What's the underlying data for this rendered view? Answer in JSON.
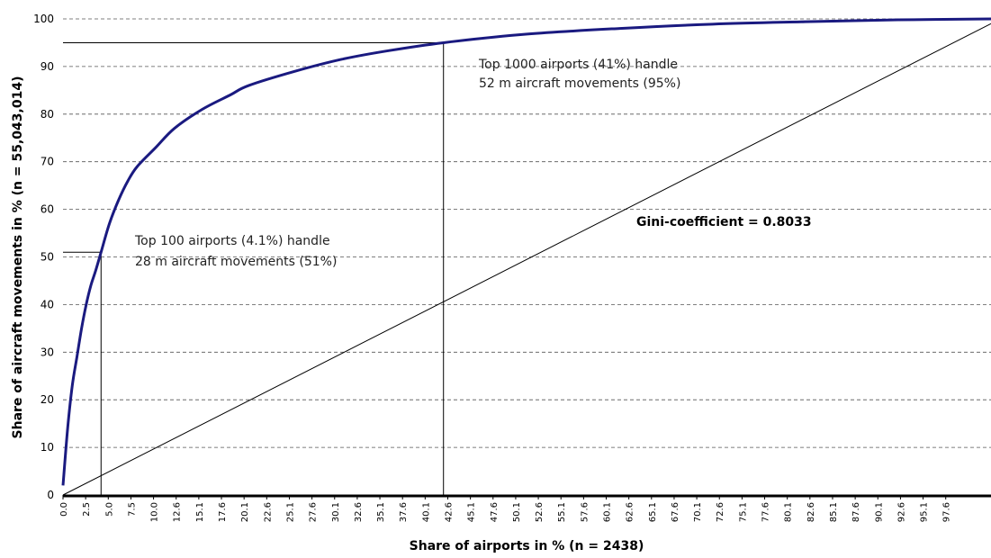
{
  "chart_data": {
    "type": "line",
    "title": "",
    "xlabel": "Share of airports in % (n = 2438)",
    "ylabel": "Share of aircraft movements in % (n = 55,043,014)",
    "xlim": [
      0,
      100
    ],
    "ylim": [
      0,
      100
    ],
    "y_ticks": [
      0,
      10,
      20,
      30,
      40,
      50,
      60,
      70,
      80,
      90,
      100
    ],
    "x_tick_labels": [
      "0.0",
      "2.5",
      "5.0",
      "7.5",
      "10.0",
      "12.6",
      "15.1",
      "17.6",
      "20.1",
      "22.6",
      "25.1",
      "27.6",
      "30.1",
      "32.6",
      "35.1",
      "37.6",
      "40.1",
      "42.6",
      "45.1",
      "47.6",
      "50.1",
      "52.6",
      "55.1",
      "57.6",
      "60.1",
      "62.6",
      "65.1",
      "67.6",
      "70.1",
      "72.6",
      "75.1",
      "77.6",
      "80.1",
      "82.6",
      "85.1",
      "87.6",
      "90.1",
      "92.6",
      "95.1",
      "97.6"
    ],
    "grid": "horizontal-dashed",
    "series": [
      {
        "color": "#1a1a80",
        "x": [
          0,
          0.5,
          1,
          1.5,
          2,
          2.5,
          3,
          3.5,
          4.1,
          5,
          6,
          7,
          8,
          10,
          12,
          15,
          18,
          20,
          25,
          30,
          35,
          41,
          50,
          60,
          70,
          80,
          90,
          100
        ],
        "y": [
          2,
          14,
          23,
          29,
          35,
          40,
          44,
          47,
          51,
          57,
          62,
          66,
          69,
          73,
          77,
          81,
          84,
          86,
          89,
          91.5,
          93.3,
          95,
          96.8,
          98,
          98.9,
          99.4,
          99.8,
          100
        ]
      },
      {
        "color": "#000000",
        "x": [
          0,
          100
        ],
        "y": [
          0,
          99
        ]
      }
    ],
    "reference_lines": [
      {
        "x": 4.1,
        "y": 51
      },
      {
        "x": 41,
        "y": 95
      }
    ],
    "annotations": [
      {
        "line1": "Top 100 airports (4.1%) handle",
        "line2": "28 m aircraft movements (51%)"
      },
      {
        "line1": "Top 1000 airports (41%) handle",
        "line2": "52 m aircraft movements (95%)"
      }
    ],
    "gini_label": "Gini-coefficient = 0.8033"
  }
}
